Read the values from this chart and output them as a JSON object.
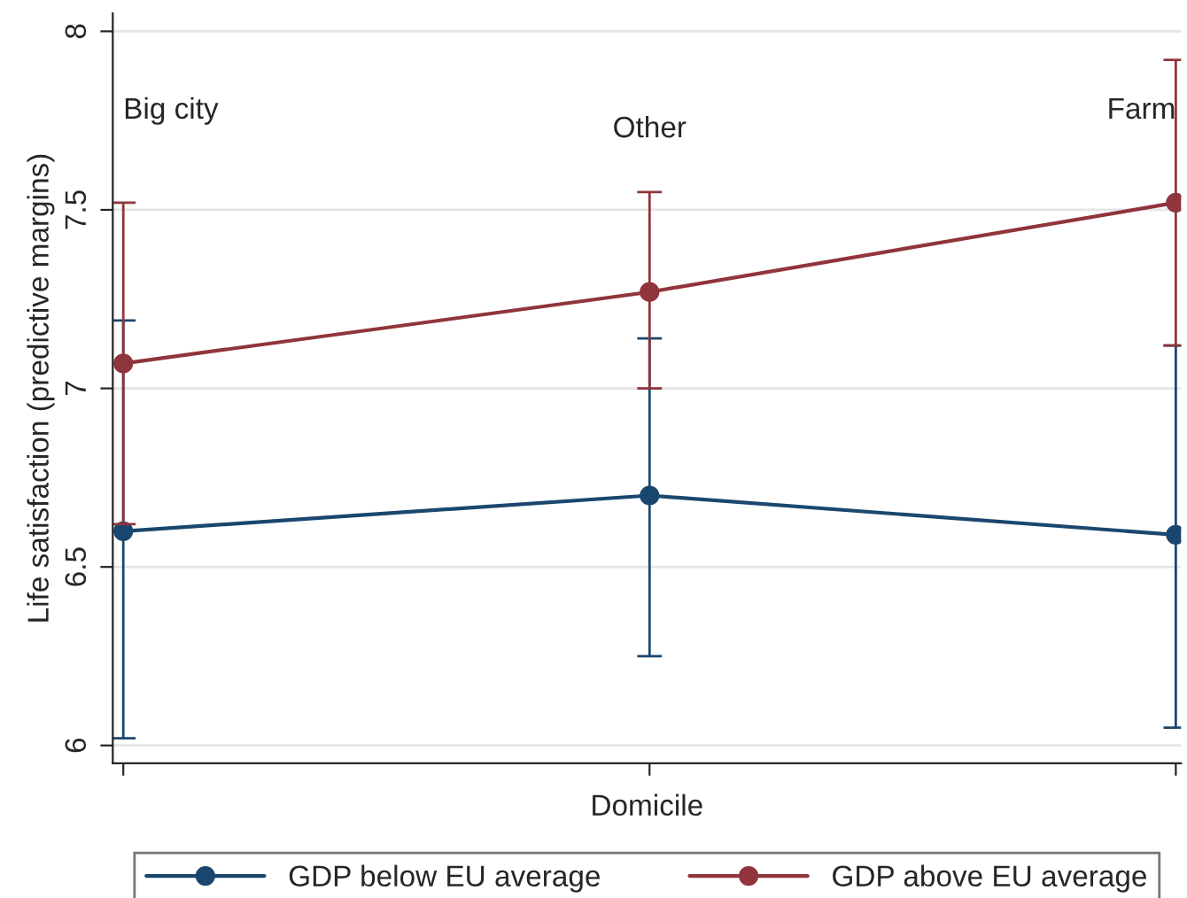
{
  "chart_data": {
    "type": "line",
    "xlabel": "Domicile",
    "ylabel": "Life satisfaction (predictive margins)",
    "categories": [
      null,
      null,
      null
    ],
    "ylim": [
      5.95,
      8.05
    ],
    "yticks": [
      6,
      6.5,
      7,
      7.5,
      8
    ],
    "grid": "y",
    "legend": "bottom",
    "marker": "circle",
    "line_style": "solid",
    "series": [
      {
        "name": "GDP below EU average",
        "color": "#1a476f",
        "values": [
          6.6,
          6.7,
          6.59
        ],
        "errors": [
          [
            6.02,
            7.19
          ],
          [
            6.25,
            7.14
          ],
          [
            6.05,
            7.12
          ]
        ]
      },
      {
        "name": "GDP above EU average",
        "color": "#90353b",
        "values": [
          7.07,
          7.27,
          7.52
        ],
        "errors": [
          [
            6.62,
            7.52
          ],
          [
            7.0,
            7.55
          ],
          [
            7.12,
            7.92
          ]
        ]
      }
    ],
    "annotations": [
      "Big city",
      "Other",
      "Farm"
    ]
  }
}
